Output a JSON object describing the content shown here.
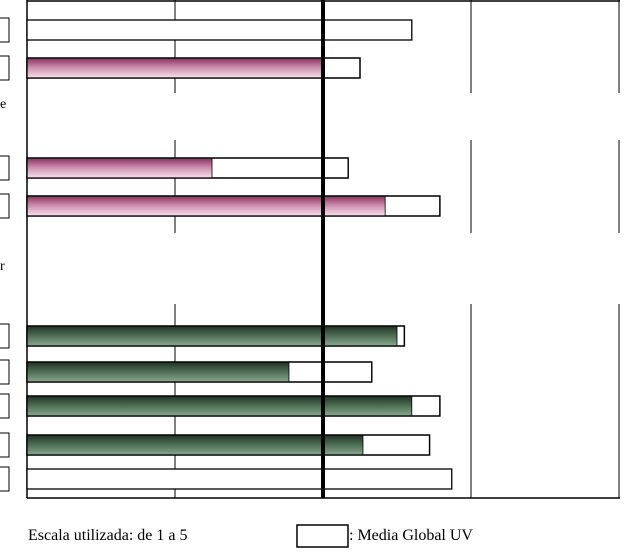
{
  "chart_data": {
    "type": "bar",
    "orientation": "horizontal",
    "scale_min": 1,
    "scale_max": 5,
    "grid": true,
    "rows": [
      {
        "group": "top",
        "value": null,
        "global_mean": 3.6
      },
      {
        "group": "top",
        "value": 3.0,
        "global_mean": 3.25
      },
      {
        "group": "middle",
        "value": 2.25,
        "global_mean": 3.17
      },
      {
        "group": "middle",
        "value": 3.42,
        "global_mean": 3.79
      },
      {
        "group": "bottom",
        "value": 3.5,
        "global_mean": 3.55
      },
      {
        "group": "bottom",
        "value": 2.77,
        "global_mean": 3.33
      },
      {
        "group": "bottom",
        "value": 3.6,
        "global_mean": 3.79
      },
      {
        "group": "bottom",
        "value": 3.27,
        "global_mean": 3.72
      },
      {
        "group": "bottom",
        "value": null,
        "global_mean": 3.87
      }
    ],
    "colors": {
      "pink": "#b85f88",
      "pink_light": "#f0cfe0",
      "green": "#2f4a35",
      "green_light": "#7c9a80",
      "outline": "#000000"
    }
  },
  "legend": {
    "scale_text": "Escala utilizada: de 1 a 5",
    "mean_label": ": Media Global UV"
  }
}
